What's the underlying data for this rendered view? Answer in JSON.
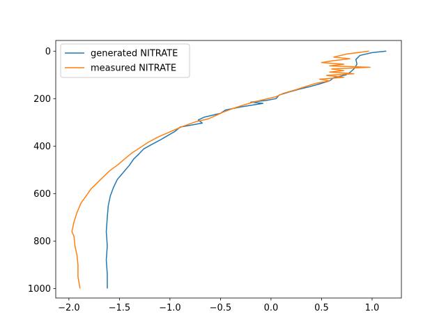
{
  "chart_data": {
    "type": "line",
    "title": "",
    "xlabel": "",
    "ylabel": "",
    "xlim": [
      -2.13,
      1.29
    ],
    "ylim": [
      1040,
      -45
    ],
    "y_inverted": true,
    "grid": false,
    "legend_position": "top-left",
    "x_ticks": [
      -2.0,
      -1.5,
      -1.0,
      -0.5,
      0.0,
      0.5,
      1.0
    ],
    "x_tick_labels": [
      "−2.0",
      "−1.5",
      "−1.0",
      "−0.5",
      "0.0",
      "0.5",
      "1.0"
    ],
    "y_ticks": [
      0,
      200,
      400,
      600,
      800,
      1000
    ],
    "y_tick_labels": [
      "0",
      "200",
      "400",
      "600",
      "800",
      "1000"
    ],
    "series": [
      {
        "name": "generated NITRATE",
        "color": "#1f77b4",
        "points": [
          [
            1.14,
            0
          ],
          [
            1.0,
            6
          ],
          [
            0.88,
            18
          ],
          [
            0.84,
            35
          ],
          [
            0.85,
            55
          ],
          [
            0.82,
            75
          ],
          [
            0.78,
            90
          ],
          [
            0.74,
            100
          ],
          [
            0.62,
            112
          ],
          [
            0.58,
            125
          ],
          [
            0.48,
            138
          ],
          [
            0.38,
            150
          ],
          [
            0.28,
            160
          ],
          [
            0.18,
            172
          ],
          [
            0.08,
            185
          ],
          [
            0.05,
            200
          ],
          [
            -0.05,
            208
          ],
          [
            -0.2,
            215
          ],
          [
            -0.08,
            220
          ],
          [
            -0.3,
            235
          ],
          [
            -0.45,
            248
          ],
          [
            -0.5,
            262
          ],
          [
            -0.66,
            278
          ],
          [
            -0.72,
            290
          ],
          [
            -0.68,
            303
          ],
          [
            -0.9,
            320
          ],
          [
            -0.95,
            338
          ],
          [
            -1.02,
            355
          ],
          [
            -1.1,
            375
          ],
          [
            -1.18,
            393
          ],
          [
            -1.26,
            412
          ],
          [
            -1.3,
            430
          ],
          [
            -1.36,
            455
          ],
          [
            -1.4,
            480
          ],
          [
            -1.46,
            510
          ],
          [
            -1.52,
            540
          ],
          [
            -1.56,
            575
          ],
          [
            -1.59,
            610
          ],
          [
            -1.61,
            650
          ],
          [
            -1.62,
            700
          ],
          [
            -1.63,
            760
          ],
          [
            -1.62,
            820
          ],
          [
            -1.63,
            880
          ],
          [
            -1.62,
            940
          ],
          [
            -1.62,
            1000
          ]
        ]
      },
      {
        "name": "measured NITRATE",
        "color": "#ff7f0e",
        "points": [
          [
            0.97,
            0
          ],
          [
            0.75,
            12
          ],
          [
            0.62,
            25
          ],
          [
            0.78,
            32
          ],
          [
            0.62,
            40
          ],
          [
            0.5,
            48
          ],
          [
            0.72,
            55
          ],
          [
            0.58,
            62
          ],
          [
            0.98,
            68
          ],
          [
            0.6,
            75
          ],
          [
            0.72,
            82
          ],
          [
            0.58,
            88
          ],
          [
            0.82,
            95
          ],
          [
            0.55,
            102
          ],
          [
            0.72,
            110
          ],
          [
            0.48,
            118
          ],
          [
            0.58,
            125
          ],
          [
            0.45,
            135
          ],
          [
            0.35,
            148
          ],
          [
            0.25,
            162
          ],
          [
            0.12,
            178
          ],
          [
            0.05,
            192
          ],
          [
            -0.05,
            202
          ],
          [
            -0.15,
            212
          ],
          [
            -0.28,
            228
          ],
          [
            -0.38,
            242
          ],
          [
            -0.48,
            258
          ],
          [
            -0.55,
            272
          ],
          [
            -0.62,
            285
          ],
          [
            -0.75,
            298
          ],
          [
            -0.88,
            318
          ],
          [
            -1.0,
            340
          ],
          [
            -1.12,
            362
          ],
          [
            -1.22,
            385
          ],
          [
            -1.3,
            408
          ],
          [
            -1.38,
            430
          ],
          [
            -1.45,
            455
          ],
          [
            -1.52,
            480
          ],
          [
            -1.6,
            505
          ],
          [
            -1.66,
            530
          ],
          [
            -1.72,
            555
          ],
          [
            -1.78,
            580
          ],
          [
            -1.83,
            610
          ],
          [
            -1.88,
            640
          ],
          [
            -1.92,
            680
          ],
          [
            -1.95,
            720
          ],
          [
            -1.97,
            760
          ],
          [
            -1.95,
            780
          ],
          [
            -1.94,
            820
          ],
          [
            -1.92,
            860
          ],
          [
            -1.91,
            900
          ],
          [
            -1.91,
            950
          ],
          [
            -1.89,
            1000
          ]
        ]
      }
    ]
  }
}
